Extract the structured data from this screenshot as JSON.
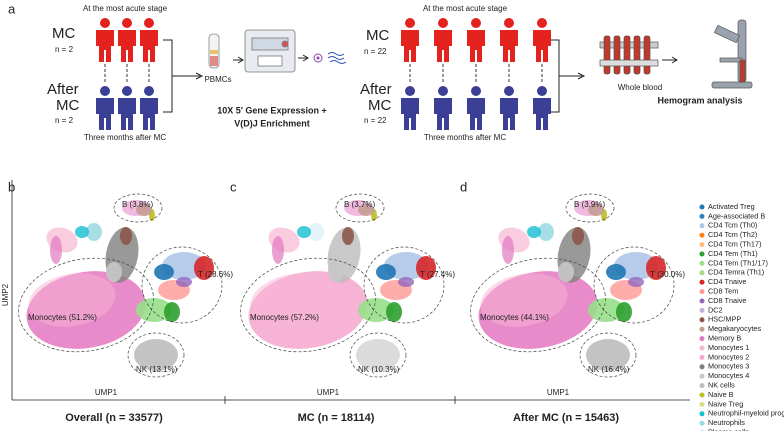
{
  "panel_a": {
    "label": "a",
    "left": {
      "top_note": "At the most acute stage",
      "group1_name": "MC",
      "group1_n": "n = 2",
      "group2_name_1": "After",
      "group2_name_2": "MC",
      "group2_n": "n = 2",
      "bottom_note": "Three months after MC",
      "sample": "PBMCs",
      "method_1": "10X 5' Gene Expression +",
      "method_2": "V(D)J Enrichment"
    },
    "right": {
      "top_note": "At the most acute stage",
      "group1_name": "MC",
      "group1_n": "n = 22",
      "group2_name_1": "After",
      "group2_name_2": "MC",
      "group2_n": "n = 22",
      "bottom_note": "Three months after MC",
      "sample": "Whole blood",
      "method": "Hemogram analysis"
    }
  },
  "umap": {
    "y_axis": "UMP2",
    "panels": [
      {
        "label": "b",
        "x_axis": "UMP1",
        "title": "Overall (n = 33577)",
        "clusters": [
          "B (3.8%)",
          "Monocytes (51.2%)",
          "T (28.6%)",
          "NK (13.1%)"
        ]
      },
      {
        "label": "c",
        "x_axis": "UMP1",
        "title": "MC (n = 18114)",
        "clusters": [
          "B (3.7%)",
          "Monocytes (57.2%)",
          "T (27.4%)",
          "NK (10.3%)"
        ]
      },
      {
        "label": "d",
        "x_axis": "UMP1",
        "title": "After MC (n = 15463)",
        "clusters": [
          "B (3.9%)",
          "Monocytes (44.1%)",
          "T (30.0%)",
          "NK (16.4%)"
        ]
      }
    ]
  },
  "legend": [
    {
      "name": "Activated Treg",
      "color": "#1f77b4"
    },
    {
      "name": "Age-associated B",
      "color": "#2f7fc1"
    },
    {
      "name": "CD4 Tcm (Th0)",
      "color": "#aec7e8"
    },
    {
      "name": "CD4 Tcm (Th2)",
      "color": "#ff7f0e"
    },
    {
      "name": "CD4 Tcm (Th17)",
      "color": "#ffbb78"
    },
    {
      "name": "CD4 Tem (Th1)",
      "color": "#2ca02c"
    },
    {
      "name": "CD4 Tem (Th1/17)",
      "color": "#98df8a"
    },
    {
      "name": "CD4 Temra (Th1)",
      "color": "#a6d98c"
    },
    {
      "name": "CD4 Tnaive",
      "color": "#d62728"
    },
    {
      "name": "CD8 Tem",
      "color": "#ff9896"
    },
    {
      "name": "CD8 Tnaive",
      "color": "#9467bd"
    },
    {
      "name": "DC2",
      "color": "#c5b0d5"
    },
    {
      "name": "HSC/MPP",
      "color": "#8c564b"
    },
    {
      "name": "Megakaryocytes",
      "color": "#c49c94"
    },
    {
      "name": "Memory B",
      "color": "#e377c2"
    },
    {
      "name": "Monocytes 1",
      "color": "#f7b6d2"
    },
    {
      "name": "Monocytes 2",
      "color": "#f4a6cf"
    },
    {
      "name": "Monocytes 3",
      "color": "#7f7f7f"
    },
    {
      "name": "Monocytes 4",
      "color": "#c7c7c7"
    },
    {
      "name": "NK cells",
      "color": "#bdbdbd"
    },
    {
      "name": "Naive B",
      "color": "#bcbd22"
    },
    {
      "name": "Naive Treg",
      "color": "#dbdb8d"
    },
    {
      "name": "Neutrophil-myeloid progenitor",
      "color": "#17becf"
    },
    {
      "name": "Neutrophils",
      "color": "#9edae5"
    },
    {
      "name": "Plasma cells",
      "color": "#a9dcec"
    }
  ]
}
